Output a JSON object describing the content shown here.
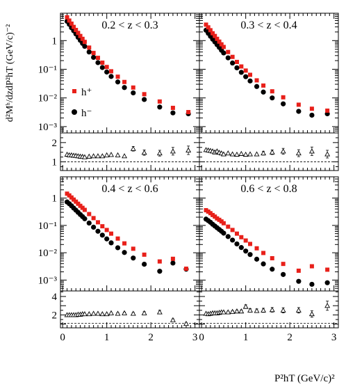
{
  "y_axis_label": "d²Mʰ/dzdP²hT (GeV/c)⁻²",
  "x_axis_label": "P²hT (GeV/c)²",
  "x_tick_labels": [
    "0",
    "1",
    "2",
    "3"
  ],
  "colors": {
    "h_plus": "#e8201a",
    "h_minus": "#000000",
    "ratio": "#000000"
  },
  "chart_data": [
    {
      "type": "scatter",
      "title": "0.2 < z < 0.3",
      "xlim": [
        -0.05,
        3.1
      ],
      "ylim_log": [
        0.0006,
        9
      ],
      "yticks": [
        "1",
        "10⁻¹",
        "10⁻²",
        "10⁻³"
      ],
      "legend": [
        {
          "label": "h⁺",
          "marker": "square",
          "color": "#e8201a"
        },
        {
          "label": "h⁻",
          "marker": "circle",
          "color": "#000000"
        }
      ],
      "x": [
        0.1,
        0.15,
        0.2,
        0.25,
        0.3,
        0.35,
        0.4,
        0.45,
        0.5,
        0.6,
        0.7,
        0.8,
        0.9,
        1.0,
        1.1,
        1.25,
        1.4,
        1.6,
        1.85,
        2.2,
        2.5,
        2.85
      ],
      "series": [
        {
          "name": "h⁺",
          "marker": "square",
          "values": [
            6.5,
            5.0,
            3.9,
            3.0,
            2.35,
            1.85,
            1.45,
            1.15,
            0.9,
            0.57,
            0.37,
            0.25,
            0.17,
            0.12,
            0.085,
            0.055,
            0.036,
            0.023,
            0.0135,
            0.0075,
            0.0045,
            0.0032
          ]
        },
        {
          "name": "h⁻",
          "marker": "circle",
          "values": [
            4.7,
            3.7,
            2.8,
            2.2,
            1.7,
            1.3,
            1.02,
            0.8,
            0.63,
            0.4,
            0.26,
            0.17,
            0.115,
            0.08,
            0.056,
            0.036,
            0.023,
            0.015,
            0.0088,
            0.0048,
            0.003,
            0.0028
          ]
        }
      ],
      "ratio": {
        "ylabel_ticks": [
          "1",
          "2"
        ],
        "ylim": [
          0.55,
          2.5
        ],
        "reference": 1,
        "x": [
          0.1,
          0.15,
          0.2,
          0.25,
          0.3,
          0.35,
          0.4,
          0.45,
          0.5,
          0.6,
          0.7,
          0.8,
          0.9,
          1.0,
          1.1,
          1.25,
          1.4,
          1.6,
          1.85,
          2.2,
          2.5,
          2.85
        ],
        "values": [
          1.38,
          1.35,
          1.35,
          1.33,
          1.32,
          1.3,
          1.28,
          1.27,
          1.25,
          1.28,
          1.3,
          1.3,
          1.3,
          1.35,
          1.37,
          1.35,
          1.3,
          1.68,
          1.48,
          1.45,
          1.55,
          1.6
        ],
        "errors": [
          0.03,
          0.03,
          0.03,
          0.03,
          0.03,
          0.03,
          0.03,
          0.03,
          0.03,
          0.03,
          0.03,
          0.04,
          0.05,
          0.05,
          0.06,
          0.06,
          0.08,
          0.12,
          0.14,
          0.15,
          0.2,
          0.22
        ]
      }
    },
    {
      "type": "scatter",
      "title": "0.3 < z < 0.4",
      "xlim": [
        -0.05,
        3.1
      ],
      "ylim_log": [
        0.0006,
        9
      ],
      "x": [
        0.1,
        0.15,
        0.2,
        0.25,
        0.3,
        0.35,
        0.4,
        0.45,
        0.5,
        0.6,
        0.7,
        0.8,
        0.9,
        1.0,
        1.1,
        1.25,
        1.4,
        1.6,
        1.85,
        2.2,
        2.5,
        2.85
      ],
      "series": [
        {
          "name": "h⁺",
          "marker": "square",
          "values": [
            3.6,
            2.9,
            2.3,
            1.8,
            1.45,
            1.15,
            0.92,
            0.74,
            0.6,
            0.4,
            0.27,
            0.18,
            0.125,
            0.09,
            0.064,
            0.041,
            0.027,
            0.017,
            0.0105,
            0.0058,
            0.0042,
            0.0036
          ]
        },
        {
          "name": "h⁻",
          "marker": "circle",
          "values": [
            2.3,
            1.8,
            1.42,
            1.12,
            0.9,
            0.72,
            0.58,
            0.46,
            0.37,
            0.25,
            0.165,
            0.112,
            0.078,
            0.055,
            0.039,
            0.025,
            0.016,
            0.01,
            0.0062,
            0.0034,
            0.0025,
            0.0028
          ]
        }
      ],
      "ratio": {
        "ylim": [
          0.55,
          2.5
        ],
        "reference": 1,
        "x": [
          0.1,
          0.15,
          0.2,
          0.25,
          0.3,
          0.35,
          0.4,
          0.45,
          0.5,
          0.6,
          0.7,
          0.8,
          0.9,
          1.0,
          1.1,
          1.25,
          1.4,
          1.6,
          1.85,
          2.2,
          2.5,
          2.85
        ],
        "values": [
          1.62,
          1.6,
          1.58,
          1.55,
          1.5,
          1.55,
          1.48,
          1.45,
          1.4,
          1.45,
          1.4,
          1.38,
          1.42,
          1.38,
          1.4,
          1.4,
          1.45,
          1.5,
          1.55,
          1.45,
          1.55,
          1.4
        ],
        "errors": [
          0.04,
          0.04,
          0.04,
          0.04,
          0.04,
          0.04,
          0.04,
          0.04,
          0.04,
          0.04,
          0.05,
          0.05,
          0.06,
          0.06,
          0.07,
          0.08,
          0.1,
          0.12,
          0.15,
          0.18,
          0.22,
          0.2
        ]
      }
    },
    {
      "type": "scatter",
      "title": "0.4 < z < 0.6",
      "xlim": [
        -0.05,
        3.1
      ],
      "ylim_log": [
        0.0004,
        6
      ],
      "yticks": [
        "1",
        "10⁻¹",
        "10⁻²",
        "10⁻³"
      ],
      "x": [
        0.1,
        0.15,
        0.2,
        0.25,
        0.3,
        0.35,
        0.4,
        0.45,
        0.5,
        0.6,
        0.7,
        0.8,
        0.9,
        1.0,
        1.1,
        1.25,
        1.4,
        1.6,
        1.85,
        2.2,
        2.5,
        2.8
      ],
      "series": [
        {
          "name": "h⁺",
          "marker": "square",
          "values": [
            1.45,
            1.25,
            1.05,
            0.88,
            0.74,
            0.62,
            0.52,
            0.44,
            0.37,
            0.26,
            0.185,
            0.13,
            0.093,
            0.068,
            0.05,
            0.033,
            0.022,
            0.014,
            0.0085,
            0.0048,
            0.006,
            0.0026
          ]
        },
        {
          "name": "h⁻",
          "marker": "circle",
          "values": [
            0.72,
            0.62,
            0.52,
            0.43,
            0.36,
            0.3,
            0.25,
            0.21,
            0.175,
            0.122,
            0.086,
            0.061,
            0.044,
            0.032,
            0.023,
            0.0152,
            0.0102,
            0.0064,
            0.0038,
            0.0021,
            0.0042,
            0.0025
          ]
        }
      ],
      "ratio": {
        "ylabel_ticks": [
          "2",
          "4"
        ],
        "ylim": [
          0.6,
          4.6
        ],
        "reference": 1.1,
        "x": [
          0.1,
          0.15,
          0.2,
          0.25,
          0.3,
          0.35,
          0.4,
          0.45,
          0.5,
          0.6,
          0.7,
          0.8,
          0.9,
          1.0,
          1.1,
          1.25,
          1.4,
          1.6,
          1.85,
          2.2,
          2.5,
          2.8
        ],
        "values": [
          2.0,
          2.0,
          2.0,
          2.0,
          2.0,
          2.05,
          2.05,
          2.1,
          2.1,
          2.1,
          2.15,
          2.15,
          2.1,
          2.1,
          2.2,
          2.15,
          2.2,
          2.15,
          2.2,
          2.3,
          1.45,
          1.05
        ],
        "errors": [
          0.05,
          0.05,
          0.05,
          0.05,
          0.05,
          0.05,
          0.05,
          0.05,
          0.05,
          0.06,
          0.06,
          0.07,
          0.07,
          0.08,
          0.08,
          0.1,
          0.1,
          0.12,
          0.15,
          0.2,
          0.12,
          0.1
        ]
      }
    },
    {
      "type": "scatter",
      "title": "0.6 < z < 0.8",
      "xlim": [
        -0.05,
        3.1
      ],
      "ylim_log": [
        0.0004,
        6
      ],
      "x": [
        0.1,
        0.15,
        0.2,
        0.25,
        0.3,
        0.35,
        0.4,
        0.45,
        0.5,
        0.6,
        0.7,
        0.8,
        0.9,
        1.0,
        1.1,
        1.25,
        1.4,
        1.6,
        1.85,
        2.2,
        2.5,
        2.85
      ],
      "series": [
        {
          "name": "h⁺",
          "marker": "square",
          "values": [
            0.36,
            0.32,
            0.28,
            0.24,
            0.21,
            0.18,
            0.16,
            0.14,
            0.12,
            0.09,
            0.068,
            0.05,
            0.037,
            0.028,
            0.021,
            0.0145,
            0.0098,
            0.0063,
            0.0039,
            0.0022,
            0.0032,
            0.0024
          ]
        },
        {
          "name": "h⁻",
          "marker": "circle",
          "values": [
            0.17,
            0.15,
            0.13,
            0.11,
            0.095,
            0.082,
            0.071,
            0.061,
            0.052,
            0.039,
            0.029,
            0.021,
            0.0155,
            0.0115,
            0.0086,
            0.0058,
            0.0039,
            0.0025,
            0.0016,
            0.0009,
            0.0007,
            0.0008
          ]
        }
      ],
      "ratio": {
        "ylim": [
          0.6,
          4.6
        ],
        "reference": 1.1,
        "x": [
          0.1,
          0.15,
          0.2,
          0.25,
          0.3,
          0.35,
          0.4,
          0.45,
          0.5,
          0.6,
          0.7,
          0.8,
          0.9,
          1.0,
          1.1,
          1.25,
          1.4,
          1.6,
          1.85,
          2.2,
          2.5,
          2.85
        ],
        "values": [
          2.15,
          2.1,
          2.15,
          2.2,
          2.2,
          2.2,
          2.25,
          2.3,
          2.3,
          2.3,
          2.35,
          2.4,
          2.4,
          2.9,
          2.5,
          2.45,
          2.5,
          2.55,
          2.5,
          2.5,
          2.1,
          3.0
        ],
        "errors": [
          0.08,
          0.08,
          0.08,
          0.08,
          0.08,
          0.08,
          0.08,
          0.09,
          0.09,
          0.1,
          0.1,
          0.12,
          0.14,
          0.2,
          0.18,
          0.2,
          0.22,
          0.25,
          0.28,
          0.3,
          0.35,
          0.5
        ]
      }
    }
  ]
}
